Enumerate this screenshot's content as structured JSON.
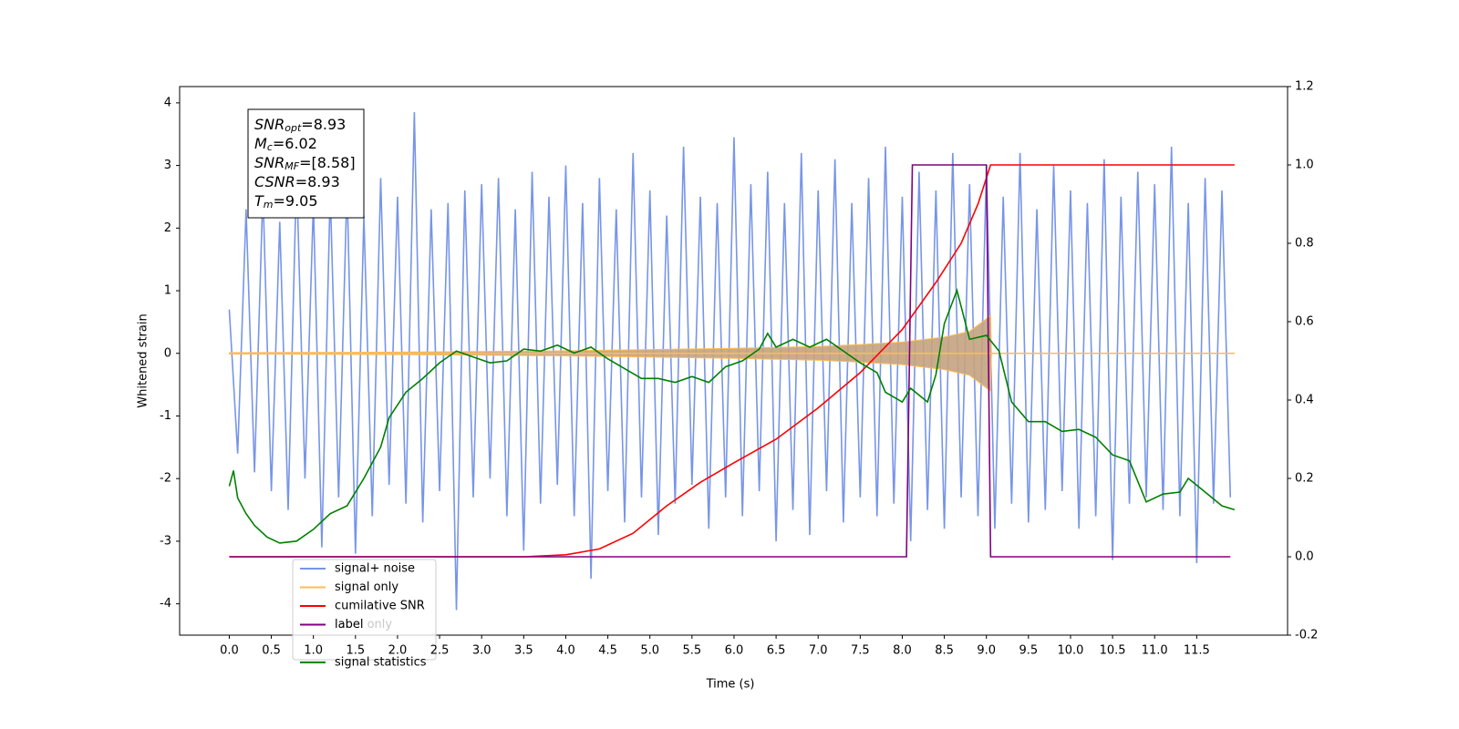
{
  "chart_data": {
    "type": "line",
    "xlabel": "Time (s)",
    "ylabel": "Whitened strain",
    "xlim": [
      -0.59,
      12.58
    ],
    "ylim": [
      -4.5,
      4.26
    ],
    "y2lim": [
      -0.2,
      1.2
    ],
    "xticks": [
      {
        "value": 0,
        "label": "0.0"
      },
      0.5,
      {
        "value": 1,
        "label": "1.0"
      },
      1.5,
      {
        "value": 2,
        "label": "2.0"
      },
      2.5,
      {
        "value": 3,
        "label": "3.0"
      },
      3.5,
      {
        "value": 4,
        "label": "4.0"
      },
      4.5,
      {
        "value": 5,
        "label": "5.0"
      },
      5.5,
      {
        "value": 6,
        "label": "6.0"
      },
      6.5,
      {
        "value": 7,
        "label": "7.0"
      },
      7.5,
      {
        "value": 8,
        "label": "8.0"
      },
      8.5,
      {
        "value": 9,
        "label": "9.0"
      },
      9.5,
      {
        "value": 10,
        "label": "10.0"
      },
      10.5,
      {
        "value": 11,
        "label": "11.0"
      },
      11.5
    ],
    "yticks": [
      -4,
      -3,
      -2,
      -1,
      0,
      1,
      2,
      3,
      4
    ],
    "y2ticks": [
      -0.2,
      {
        "value": 0,
        "label": "0.0"
      },
      0.2,
      0.4,
      0.6,
      0.8,
      {
        "value": 1,
        "label": "1.0"
      },
      1.2
    ],
    "annotation": [
      {
        "base": "SNR",
        "sub": "opt",
        "rest": "=8.93"
      },
      {
        "base": "M",
        "sub": "c",
        "rest": "=6.02"
      },
      {
        "base": "SNR",
        "sub": "MF",
        "rest": "=[8.58]"
      },
      {
        "base": "CSNR",
        "rest": "=8.93"
      },
      {
        "base": "T",
        "sub": "m",
        "rest": "=9.05"
      }
    ],
    "extra_legend": [
      "label only"
    ],
    "series": [
      {
        "name": "signal+ noise",
        "color": "#7795e8",
        "axis": "y",
        "x": [
          0,
          0.1,
          0.2,
          0.3,
          0.4,
          0.5,
          0.6,
          0.7,
          0.8,
          0.9,
          1,
          1.1,
          1.2,
          1.3,
          1.4,
          1.5,
          1.6,
          1.7,
          1.8,
          1.9,
          2,
          2.1,
          2.2,
          2.3,
          2.4,
          2.5,
          2.6,
          2.7,
          2.8,
          2.9,
          3,
          3.1,
          3.2,
          3.3,
          3.4,
          3.5,
          3.6,
          3.7,
          3.8,
          3.9,
          4,
          4.1,
          4.2,
          4.3,
          4.4,
          4.5,
          4.6,
          4.7,
          4.8,
          4.9,
          5,
          5.1,
          5.2,
          5.3,
          5.4,
          5.5,
          5.6,
          5.7,
          5.8,
          5.9,
          6,
          6.1,
          6.2,
          6.3,
          6.4,
          6.5,
          6.6,
          6.7,
          6.8,
          6.9,
          7,
          7.1,
          7.2,
          7.3,
          7.4,
          7.5,
          7.6,
          7.7,
          7.8,
          7.9,
          8,
          8.1,
          8.2,
          8.3,
          8.4,
          8.5,
          8.6,
          8.7,
          8.8,
          8.9,
          9,
          9.1,
          9.2,
          9.3,
          9.4,
          9.5,
          9.6,
          9.7,
          9.8,
          9.9,
          10,
          10.1,
          10.2,
          10.3,
          10.4,
          10.5,
          10.6,
          10.7,
          10.8,
          10.9,
          11,
          11.1,
          11.2,
          11.3,
          11.4,
          11.5,
          11.6,
          11.7,
          11.8,
          11.9
        ],
        "values": [
          0.7,
          -1.6,
          2.3,
          -1.9,
          2.6,
          -2.2,
          2.1,
          -2.5,
          2.9,
          -2.0,
          2.4,
          -3.1,
          2.6,
          -2.3,
          2.7,
          -3.2,
          2.2,
          -2.6,
          2.8,
          -2.1,
          2.5,
          -2.4,
          3.85,
          -2.7,
          2.3,
          -2.2,
          2.4,
          -4.1,
          2.6,
          -2.3,
          2.7,
          -2.0,
          2.8,
          -2.6,
          2.3,
          -3.15,
          2.9,
          -2.4,
          2.5,
          -2.1,
          3.0,
          -2.6,
          2.4,
          -3.6,
          2.8,
          -2.2,
          2.3,
          -2.7,
          3.2,
          -2.3,
          2.6,
          -2.9,
          2.2,
          -2.4,
          3.3,
          -2.1,
          2.5,
          -2.8,
          2.4,
          -2.3,
          3.45,
          -2.6,
          2.7,
          -2.2,
          2.9,
          -3.0,
          2.4,
          -2.5,
          3.2,
          -2.9,
          2.6,
          -2.2,
          3.1,
          -2.7,
          2.4,
          -2.3,
          2.8,
          -2.6,
          3.3,
          -2.4,
          2.5,
          -3.0,
          2.9,
          -2.5,
          2.6,
          -2.8,
          3.2,
          -2.3,
          2.7,
          -2.6,
          3.0,
          -2.8,
          2.5,
          -2.4,
          3.2,
          -2.7,
          2.3,
          -2.5,
          3.0,
          -2.2,
          2.6,
          -2.8,
          2.4,
          -2.6,
          3.1,
          -3.3,
          2.5,
          -2.4,
          2.9,
          -2.3,
          2.7,
          -2.5,
          3.3,
          -2.6,
          2.4,
          -3.35,
          2.8,
          -2.4,
          2.6,
          -2.3
        ]
      },
      {
        "name": "signal only",
        "color": "#ffbb55",
        "fill": "#c4a37f",
        "band": true,
        "axis": "y",
        "x": [
          0,
          2,
          4,
          5,
          6,
          7,
          7.5,
          8,
          8.5,
          8.8,
          9.0,
          9.05,
          9.06,
          11.95
        ],
        "values": [
          0.01,
          0.02,
          0.04,
          0.06,
          0.08,
          0.11,
          0.14,
          0.18,
          0.26,
          0.35,
          0.55,
          0.6,
          0,
          0
        ]
      },
      {
        "name": "cumilative SNR",
        "color": "red",
        "axis": "y2",
        "x": [
          0,
          3.5,
          4.0,
          4.4,
          4.8,
          5.2,
          5.6,
          6.0,
          6.5,
          7.0,
          7.5,
          8.0,
          8.4,
          8.7,
          8.9,
          9.05,
          11.95
        ],
        "values": [
          0,
          0,
          0.005,
          0.02,
          0.06,
          0.13,
          0.19,
          0.24,
          0.3,
          0.38,
          0.47,
          0.58,
          0.7,
          0.8,
          0.9,
          1.0,
          1.0
        ]
      },
      {
        "name": "label",
        "color": "purple",
        "axis": "y2",
        "x": [
          0,
          8.05,
          8.12,
          9.0,
          9.05,
          11.9
        ],
        "values": [
          0,
          0,
          1,
          1,
          0,
          0
        ]
      },
      {
        "name": "signal statistics",
        "color": "green",
        "axis": "y2",
        "x": [
          0,
          0.05,
          0.1,
          0.2,
          0.3,
          0.45,
          0.6,
          0.8,
          1.0,
          1.2,
          1.4,
          1.6,
          1.8,
          1.9,
          2.1,
          2.3,
          2.5,
          2.7,
          2.9,
          3.1,
          3.3,
          3.5,
          3.7,
          3.9,
          4.1,
          4.3,
          4.5,
          4.7,
          4.9,
          5.1,
          5.3,
          5.5,
          5.7,
          5.9,
          6.1,
          6.3,
          6.4,
          6.5,
          6.7,
          6.9,
          7.1,
          7.3,
          7.5,
          7.7,
          7.8,
          8.0,
          8.1,
          8.3,
          8.4,
          8.5,
          8.65,
          8.8,
          9.0,
          9.15,
          9.3,
          9.5,
          9.7,
          9.9,
          10.1,
          10.3,
          10.5,
          10.7,
          10.9,
          11.1,
          11.3,
          11.4,
          11.6,
          11.8,
          11.95
        ],
        "values": [
          0.18,
          0.22,
          0.15,
          0.11,
          0.08,
          0.05,
          0.035,
          0.04,
          0.07,
          0.11,
          0.13,
          0.2,
          0.28,
          0.355,
          0.42,
          0.455,
          0.495,
          0.525,
          0.51,
          0.495,
          0.5,
          0.53,
          0.525,
          0.54,
          0.52,
          0.535,
          0.505,
          0.48,
          0.455,
          0.455,
          0.445,
          0.46,
          0.445,
          0.485,
          0.5,
          0.53,
          0.57,
          0.535,
          0.555,
          0.535,
          0.555,
          0.525,
          0.495,
          0.47,
          0.42,
          0.395,
          0.43,
          0.395,
          0.465,
          0.595,
          0.68,
          0.555,
          0.565,
          0.525,
          0.395,
          0.345,
          0.345,
          0.32,
          0.325,
          0.305,
          0.26,
          0.245,
          0.14,
          0.16,
          0.165,
          0.2,
          0.165,
          0.13,
          0.12
        ]
      }
    ]
  }
}
